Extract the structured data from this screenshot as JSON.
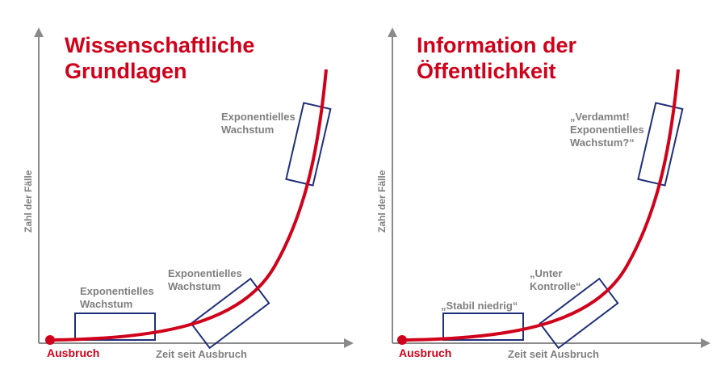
{
  "colors": {
    "curve": "#d0021b",
    "box": "#1f2f7a",
    "axis": "#8a8a8a",
    "label": "#7f7f7f",
    "title": "#d0021b"
  },
  "panels": [
    {
      "title_line1": "Wissenschaftliche",
      "title_line2": "Grundlagen",
      "y_axis_label": "Zahl der Fälle",
      "x_axis_label": "Zeit seit Ausbruch",
      "origin_label": "Ausbruch",
      "annotations": [
        {
          "line1": "Exponentielles",
          "line2": "Wachstum"
        },
        {
          "line1": "Exponentielles",
          "line2": "Wachstum"
        },
        {
          "line1": "Exponentielles",
          "line2": "Wachstum"
        }
      ]
    },
    {
      "title_line1": "Information der",
      "title_line2": "Öffentlichkeit",
      "y_axis_label": "Zahl der Fälle",
      "x_axis_label": "Zeit seit Ausbruch",
      "origin_label": "Ausbruch",
      "annotations": [
        {
          "line1": "„Stabil niedrig“",
          "line2": ""
        },
        {
          "line1": "„Unter",
          "line2": "Kontrolle“"
        },
        {
          "line1": "„Verdammt!",
          "line2": "Exponentielles",
          "line3": "Wachstum?“"
        }
      ]
    }
  ]
}
